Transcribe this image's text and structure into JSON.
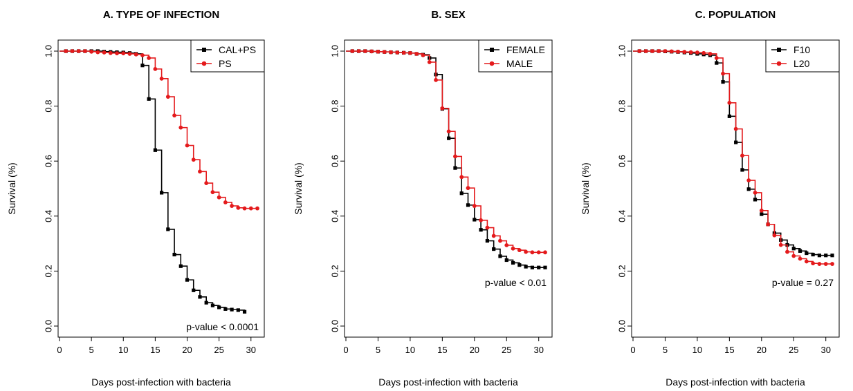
{
  "colors": {
    "series1": "#000000",
    "series2": "#e41a1c"
  },
  "chart_data": [
    {
      "type": "line",
      "title": "A. TYPE OF INFECTION",
      "xlabel": "Days post-infection with bacteria",
      "ylabel": "Survival (%)",
      "xlim": [
        0,
        31
      ],
      "ylim": [
        0,
        1
      ],
      "xticks": [
        "0",
        "5",
        "10",
        "15",
        "20",
        "25",
        "30"
      ],
      "yticks": [
        "0.0",
        "0.2",
        "0.4",
        "0.6",
        "0.8",
        "1.0"
      ],
      "legend_position": "top-right",
      "annotation": "p-value < 0.0001",
      "series": [
        {
          "name": "CAL+PS",
          "x": [
            0,
            1,
            2,
            3,
            4,
            5,
            6,
            7,
            8,
            9,
            10,
            11,
            12,
            13,
            14,
            15,
            16,
            17,
            18,
            19,
            20,
            21,
            22,
            23,
            24,
            25,
            26,
            27,
            28,
            29
          ],
          "y": [
            1.0,
            1.0,
            1.0,
            1.0,
            1.0,
            1.0,
            1.0,
            0.998,
            0.997,
            0.996,
            0.995,
            0.993,
            0.99,
            0.948,
            0.826,
            0.64,
            0.485,
            0.352,
            0.26,
            0.218,
            0.168,
            0.13,
            0.106,
            0.085,
            0.075,
            0.068,
            0.062,
            0.06,
            0.058,
            0.052
          ]
        },
        {
          "name": "PS",
          "x": [
            0,
            1,
            2,
            3,
            4,
            5,
            6,
            7,
            8,
            9,
            10,
            11,
            12,
            13,
            14,
            15,
            16,
            17,
            18,
            19,
            20,
            21,
            22,
            23,
            24,
            25,
            26,
            27,
            28,
            29,
            30,
            31
          ],
          "y": [
            1.0,
            1.0,
            1.0,
            1.0,
            1.0,
            0.998,
            0.996,
            0.995,
            0.993,
            0.992,
            0.992,
            0.99,
            0.988,
            0.985,
            0.975,
            0.935,
            0.9,
            0.834,
            0.766,
            0.722,
            0.657,
            0.605,
            0.562,
            0.52,
            0.487,
            0.468,
            0.45,
            0.437,
            0.43,
            0.428,
            0.428,
            0.428
          ]
        }
      ]
    },
    {
      "type": "line",
      "title": "B.  SEX",
      "xlabel": "Days post-infection with bacteria",
      "ylabel": "Survival (%)",
      "xlim": [
        0,
        31
      ],
      "ylim": [
        0,
        1
      ],
      "xticks": [
        "0",
        "5",
        "10",
        "15",
        "20",
        "25",
        "30"
      ],
      "yticks": [
        "0.0",
        "0.2",
        "0.4",
        "0.6",
        "0.8",
        "1.0"
      ],
      "legend_position": "top-right",
      "annotation": "p-value < 0.01",
      "series": [
        {
          "name": "FEMALE",
          "x": [
            0,
            1,
            2,
            3,
            4,
            5,
            6,
            7,
            8,
            9,
            10,
            11,
            12,
            13,
            14,
            15,
            16,
            17,
            18,
            19,
            20,
            21,
            22,
            23,
            24,
            25,
            26,
            27,
            28,
            29,
            30,
            31
          ],
          "y": [
            1.0,
            1.0,
            1.0,
            1.0,
            0.999,
            0.998,
            0.997,
            0.996,
            0.995,
            0.994,
            0.993,
            0.99,
            0.987,
            0.975,
            0.915,
            0.79,
            0.683,
            0.575,
            0.483,
            0.44,
            0.387,
            0.35,
            0.31,
            0.28,
            0.254,
            0.24,
            0.23,
            0.222,
            0.216,
            0.213,
            0.213,
            0.213
          ]
        },
        {
          "name": "MALE",
          "x": [
            0,
            1,
            2,
            3,
            4,
            5,
            6,
            7,
            8,
            9,
            10,
            11,
            12,
            13,
            14,
            15,
            16,
            17,
            18,
            19,
            20,
            21,
            22,
            23,
            24,
            25,
            26,
            27,
            28,
            29,
            30,
            31
          ],
          "y": [
            1.0,
            1.0,
            1.0,
            1.0,
            0.999,
            0.998,
            0.997,
            0.996,
            0.995,
            0.994,
            0.993,
            0.99,
            0.985,
            0.96,
            0.895,
            0.792,
            0.708,
            0.617,
            0.542,
            0.502,
            0.437,
            0.385,
            0.358,
            0.328,
            0.31,
            0.294,
            0.282,
            0.276,
            0.27,
            0.268,
            0.268,
            0.268
          ]
        }
      ]
    },
    {
      "type": "line",
      "title": "C. POPULATION",
      "xlabel": "Days post-infection with bacteria",
      "ylabel": "Survival (%)",
      "xlim": [
        0,
        31
      ],
      "ylim": [
        0,
        1
      ],
      "xticks": [
        "0",
        "5",
        "10",
        "15",
        "20",
        "25",
        "30"
      ],
      "yticks": [
        "0.0",
        "0.2",
        "0.4",
        "0.6",
        "0.8",
        "1.0"
      ],
      "legend_position": "top-right",
      "annotation": "p-value = 0.27",
      "series": [
        {
          "name": "F10",
          "x": [
            0,
            1,
            2,
            3,
            4,
            5,
            6,
            7,
            8,
            9,
            10,
            11,
            12,
            13,
            14,
            15,
            16,
            17,
            18,
            19,
            20,
            21,
            22,
            23,
            24,
            25,
            26,
            27,
            28,
            29,
            30,
            31
          ],
          "y": [
            1.0,
            1.0,
            1.0,
            1.0,
            1.0,
            0.999,
            0.998,
            0.997,
            0.995,
            0.993,
            0.99,
            0.988,
            0.985,
            0.957,
            0.888,
            0.763,
            0.668,
            0.568,
            0.498,
            0.46,
            0.407,
            0.37,
            0.338,
            0.313,
            0.295,
            0.282,
            0.273,
            0.265,
            0.26,
            0.257,
            0.257,
            0.257
          ]
        },
        {
          "name": "L20",
          "x": [
            0,
            1,
            2,
            3,
            4,
            5,
            6,
            7,
            8,
            9,
            10,
            11,
            12,
            13,
            14,
            15,
            16,
            17,
            18,
            19,
            20,
            21,
            22,
            23,
            24,
            25,
            26,
            27,
            28,
            29,
            30,
            31
          ],
          "y": [
            1.0,
            1.0,
            1.0,
            1.0,
            1.0,
            1.0,
            0.999,
            0.998,
            0.997,
            0.996,
            0.995,
            0.993,
            0.99,
            0.975,
            0.918,
            0.812,
            0.717,
            0.62,
            0.53,
            0.485,
            0.42,
            0.37,
            0.33,
            0.295,
            0.27,
            0.255,
            0.245,
            0.235,
            0.228,
            0.226,
            0.226,
            0.226
          ]
        }
      ]
    }
  ]
}
